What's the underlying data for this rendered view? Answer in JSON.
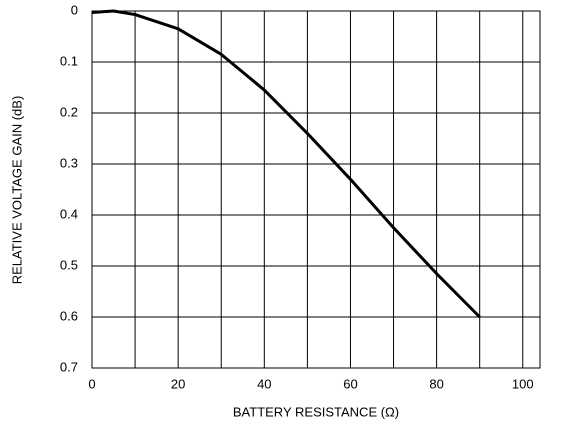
{
  "chart_data": {
    "type": "line",
    "xlabel": "BATTERY RESISTANCE  (Ω)",
    "ylabel": "RELATIVE VOLTAGE GAIN  (dB)",
    "x": [
      0,
      5,
      10,
      20,
      30,
      40,
      50,
      60,
      70,
      80,
      90
    ],
    "series": [
      {
        "color": "#000000",
        "values": [
          0.003,
          0,
          0.007,
          0.035,
          0.085,
          0.155,
          0.24,
          0.33,
          0.425,
          0.515,
          0.6
        ]
      }
    ],
    "xlim": [
      0,
      104
    ],
    "xticks": [
      0,
      20,
      40,
      60,
      80,
      100
    ],
    "xminor": [
      10,
      30,
      50,
      70,
      90
    ],
    "ylim": [
      0,
      0.7
    ],
    "yticks": [
      0,
      0.1,
      0.2,
      0.3,
      0.4,
      0.5,
      0.6,
      0.7
    ],
    "y_inverted": true,
    "grid": true
  }
}
